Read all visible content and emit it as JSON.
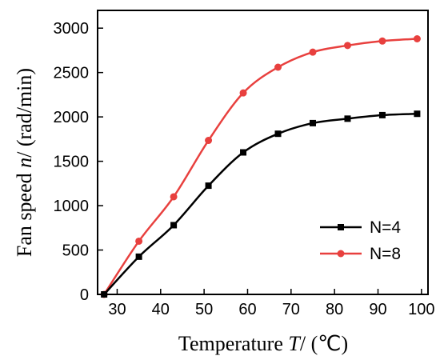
{
  "chart_data": {
    "type": "line",
    "xlabel_prefix": "Temperature ",
    "xlabel_var": "T",
    "xlabel_suffix": "/ (℃)",
    "ylabel_prefix": "Fan speed ",
    "ylabel_var": "n",
    "ylabel_suffix": "/ (rad/min)",
    "xlim": [
      25.5,
      101.5
    ],
    "ylim": [
      0,
      3200
    ],
    "xticks": [
      30,
      40,
      50,
      60,
      70,
      80,
      90,
      100
    ],
    "yticks": [
      0,
      500,
      1000,
      1500,
      2000,
      2500,
      3000
    ],
    "grid": false,
    "legend_position": "lower-right",
    "series": [
      {
        "name": "N=4",
        "color": "#000000",
        "marker": "square",
        "x": [
          27,
          35,
          43,
          51,
          59,
          67,
          75,
          83,
          91,
          99
        ],
        "y": [
          0,
          425,
          780,
          1225,
          1600,
          1810,
          1930,
          1980,
          2020,
          2035
        ]
      },
      {
        "name": "N=8",
        "color": "#e8403e",
        "marker": "circle",
        "x": [
          27,
          35,
          43,
          51,
          59,
          67,
          75,
          83,
          91,
          99
        ],
        "y": [
          0,
          600,
          1100,
          1735,
          2270,
          2560,
          2730,
          2805,
          2855,
          2880
        ]
      }
    ]
  }
}
